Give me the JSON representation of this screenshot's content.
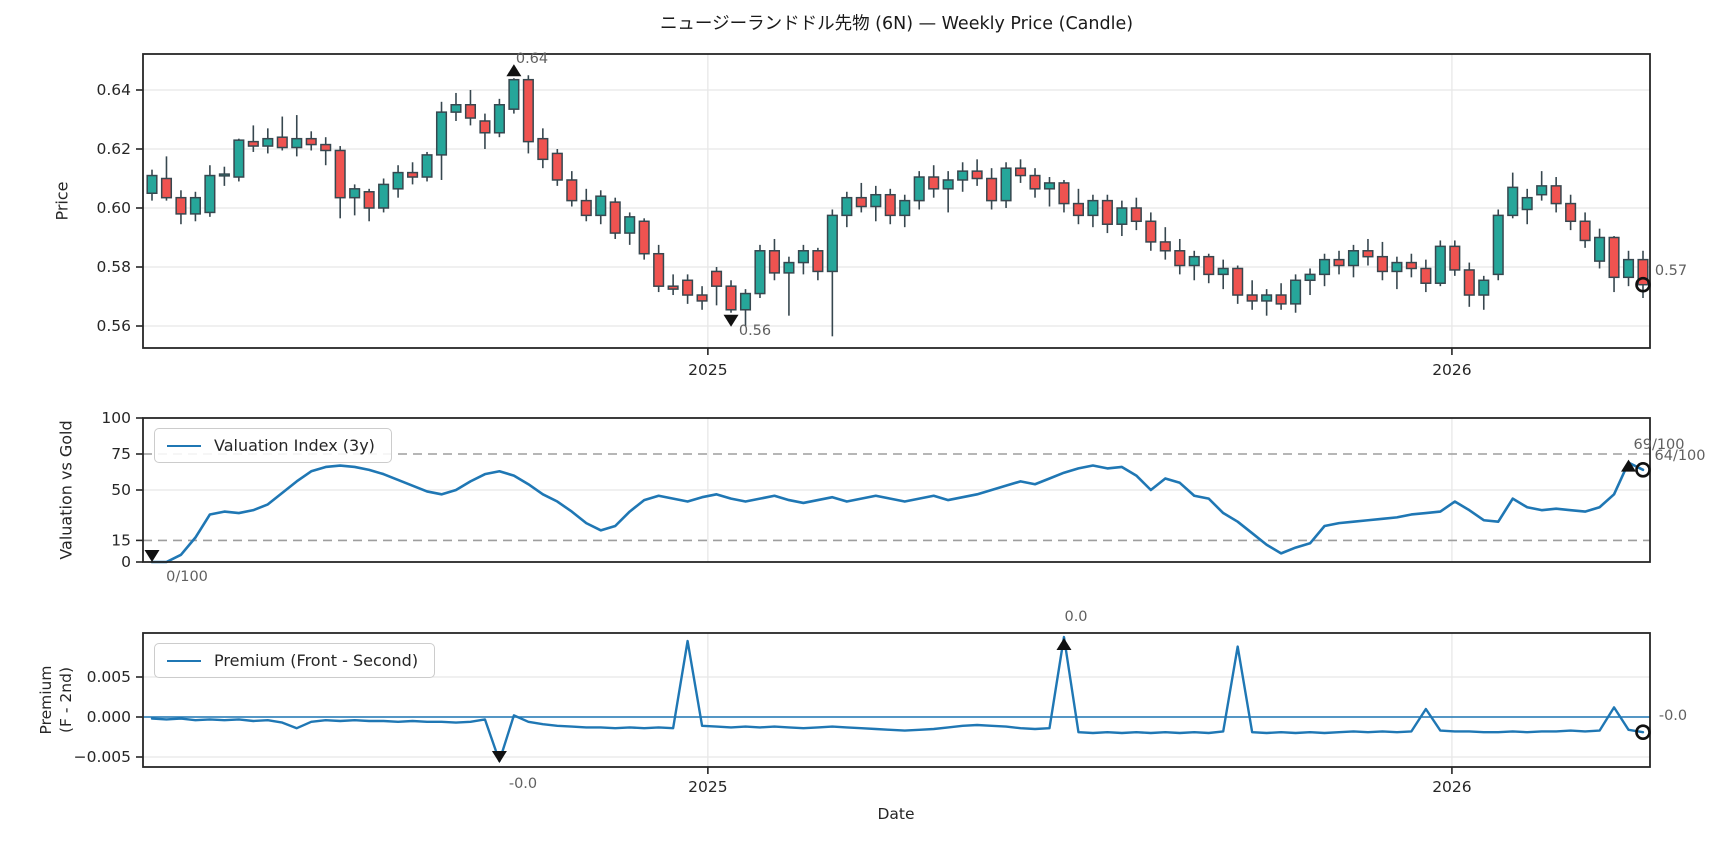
{
  "title": "ニュージーランドドル先物 (6N) — Weekly Price (Candle)",
  "colors": {
    "candle_up": "#26a69a",
    "candle_down": "#ef5350",
    "candle_outline": "#37474f",
    "line_blue": "#1f77b4",
    "grid": "#e7e7e7",
    "dashed": "#9e9e9e",
    "spine": "#262626",
    "marker": "#111111",
    "annotation_text": "#606060"
  },
  "x_axis": {
    "tick_labels": [
      "2025",
      "2026"
    ],
    "tick_indices": [
      38.4,
      89.8
    ],
    "xlabel": "Date"
  },
  "chart_data": [
    {
      "type": "candlestick",
      "title": "ニュージーランドドル先物 (6N) — Weekly Price (Candle)",
      "ylabel": "Price",
      "yticks": [
        0.56,
        0.58,
        0.6,
        0.62,
        0.64
      ],
      "ytick_labels": [
        "0.56",
        "0.58",
        "0.60",
        "0.62",
        "0.64"
      ],
      "ylim": [
        0.5525,
        0.6522
      ],
      "annotations": {
        "high_label": "0.64",
        "high_index": 25,
        "low_label": "0.56",
        "low_index": 40,
        "last_label": "0.57",
        "last_index": 103
      },
      "candles_ohlc": [
        [
          0.605,
          0.613,
          0.6025,
          0.611
        ],
        [
          0.61,
          0.6175,
          0.6025,
          0.6035
        ],
        [
          0.6035,
          0.606,
          0.5945,
          0.598
        ],
        [
          0.598,
          0.6055,
          0.5955,
          0.6035
        ],
        [
          0.5985,
          0.6145,
          0.597,
          0.611
        ],
        [
          0.611,
          0.614,
          0.6075,
          0.6115
        ],
        [
          0.6105,
          0.6235,
          0.609,
          0.623
        ],
        [
          0.6225,
          0.628,
          0.619,
          0.621
        ],
        [
          0.621,
          0.627,
          0.6185,
          0.6235
        ],
        [
          0.624,
          0.631,
          0.6195,
          0.6205
        ],
        [
          0.6205,
          0.6315,
          0.6175,
          0.6235
        ],
        [
          0.6235,
          0.626,
          0.6195,
          0.6215
        ],
        [
          0.6215,
          0.624,
          0.6145,
          0.6195
        ],
        [
          0.6195,
          0.621,
          0.5965,
          0.6035
        ],
        [
          0.6035,
          0.608,
          0.5975,
          0.6065
        ],
        [
          0.6055,
          0.6065,
          0.5955,
          0.6
        ],
        [
          0.6,
          0.61,
          0.5985,
          0.608
        ],
        [
          0.6065,
          0.6145,
          0.6035,
          0.612
        ],
        [
          0.612,
          0.6155,
          0.608,
          0.6105
        ],
        [
          0.6105,
          0.619,
          0.609,
          0.618
        ],
        [
          0.618,
          0.636,
          0.6095,
          0.6325
        ],
        [
          0.6325,
          0.639,
          0.6295,
          0.635
        ],
        [
          0.635,
          0.64,
          0.628,
          0.6305
        ],
        [
          0.6295,
          0.632,
          0.62,
          0.6255
        ],
        [
          0.6255,
          0.637,
          0.624,
          0.635
        ],
        [
          0.6335,
          0.644,
          0.632,
          0.6435
        ],
        [
          0.6435,
          0.645,
          0.6185,
          0.6225
        ],
        [
          0.6235,
          0.627,
          0.6135,
          0.6165
        ],
        [
          0.6185,
          0.62,
          0.6075,
          0.6095
        ],
        [
          0.6095,
          0.6125,
          0.6005,
          0.6025
        ],
        [
          0.6025,
          0.6065,
          0.5955,
          0.5975
        ],
        [
          0.5975,
          0.606,
          0.5945,
          0.604
        ],
        [
          0.602,
          0.6035,
          0.5895,
          0.5915
        ],
        [
          0.5915,
          0.5985,
          0.5875,
          0.597
        ],
        [
          0.5955,
          0.5965,
          0.5825,
          0.5845
        ],
        [
          0.5845,
          0.5875,
          0.5715,
          0.5735
        ],
        [
          0.5735,
          0.5775,
          0.5705,
          0.5725
        ],
        [
          0.5755,
          0.5775,
          0.5675,
          0.5705
        ],
        [
          0.5705,
          0.5735,
          0.5655,
          0.5685
        ],
        [
          0.5785,
          0.58,
          0.567,
          0.5735
        ],
        [
          0.5735,
          0.5755,
          0.5645,
          0.5655
        ],
        [
          0.5655,
          0.5725,
          0.56,
          0.571
        ],
        [
          0.571,
          0.5875,
          0.5695,
          0.5855
        ],
        [
          0.5855,
          0.5895,
          0.5755,
          0.578
        ],
        [
          0.578,
          0.5835,
          0.5635,
          0.5815
        ],
        [
          0.5815,
          0.5875,
          0.5775,
          0.5855
        ],
        [
          0.5855,
          0.5865,
          0.5755,
          0.5785
        ],
        [
          0.5785,
          0.5995,
          0.5565,
          0.5975
        ],
        [
          0.5975,
          0.6055,
          0.5935,
          0.6035
        ],
        [
          0.6035,
          0.6085,
          0.5985,
          0.6005
        ],
        [
          0.6005,
          0.6075,
          0.5955,
          0.6045
        ],
        [
          0.6045,
          0.6065,
          0.5945,
          0.5975
        ],
        [
          0.5975,
          0.6045,
          0.5935,
          0.6025
        ],
        [
          0.6025,
          0.6125,
          0.5995,
          0.6105
        ],
        [
          0.6105,
          0.6145,
          0.6035,
          0.6065
        ],
        [
          0.6065,
          0.6125,
          0.5985,
          0.6095
        ],
        [
          0.6095,
          0.6155,
          0.6055,
          0.6125
        ],
        [
          0.6125,
          0.6165,
          0.6075,
          0.61
        ],
        [
          0.61,
          0.6135,
          0.5995,
          0.6025
        ],
        [
          0.6025,
          0.6155,
          0.6,
          0.6135
        ],
        [
          0.6135,
          0.6165,
          0.6085,
          0.611
        ],
        [
          0.611,
          0.6135,
          0.6035,
          0.6065
        ],
        [
          0.6065,
          0.6105,
          0.6005,
          0.6085
        ],
        [
          0.6085,
          0.6095,
          0.5985,
          0.6015
        ],
        [
          0.6015,
          0.6065,
          0.5945,
          0.5975
        ],
        [
          0.5975,
          0.6045,
          0.5935,
          0.6025
        ],
        [
          0.6025,
          0.6045,
          0.5915,
          0.5945
        ],
        [
          0.5945,
          0.6025,
          0.5905,
          0.6
        ],
        [
          0.6,
          0.6035,
          0.5925,
          0.5955
        ],
        [
          0.5955,
          0.5985,
          0.5855,
          0.5885
        ],
        [
          0.5885,
          0.5935,
          0.5825,
          0.5855
        ],
        [
          0.5855,
          0.5895,
          0.5775,
          0.5805
        ],
        [
          0.5805,
          0.5855,
          0.5755,
          0.5835
        ],
        [
          0.5835,
          0.5845,
          0.5745,
          0.5775
        ],
        [
          0.5775,
          0.5825,
          0.5725,
          0.5795
        ],
        [
          0.5795,
          0.5805,
          0.5675,
          0.5705
        ],
        [
          0.5705,
          0.5755,
          0.5655,
          0.5685
        ],
        [
          0.5685,
          0.5725,
          0.5635,
          0.5705
        ],
        [
          0.5705,
          0.5745,
          0.5655,
          0.5675
        ],
        [
          0.5675,
          0.5775,
          0.5645,
          0.5755
        ],
        [
          0.5755,
          0.5795,
          0.5705,
          0.5775
        ],
        [
          0.5775,
          0.5845,
          0.5735,
          0.5825
        ],
        [
          0.5825,
          0.5855,
          0.5775,
          0.5805
        ],
        [
          0.5805,
          0.5875,
          0.5765,
          0.5855
        ],
        [
          0.5855,
          0.5895,
          0.5805,
          0.5835
        ],
        [
          0.5835,
          0.5885,
          0.5755,
          0.5785
        ],
        [
          0.5785,
          0.5835,
          0.5725,
          0.5815
        ],
        [
          0.5815,
          0.5845,
          0.5765,
          0.5795
        ],
        [
          0.5795,
          0.5825,
          0.5715,
          0.5745
        ],
        [
          0.5745,
          0.589,
          0.5735,
          0.587
        ],
        [
          0.587,
          0.589,
          0.577,
          0.579
        ],
        [
          0.579,
          0.5815,
          0.5665,
          0.5705
        ],
        [
          0.5705,
          0.577,
          0.5655,
          0.5755
        ],
        [
          0.5775,
          0.5995,
          0.5755,
          0.5975
        ],
        [
          0.5975,
          0.612,
          0.5965,
          0.607
        ],
        [
          0.5995,
          0.6065,
          0.5945,
          0.6035
        ],
        [
          0.6045,
          0.6125,
          0.6025,
          0.6075
        ],
        [
          0.6075,
          0.6105,
          0.5985,
          0.6015
        ],
        [
          0.6015,
          0.6045,
          0.5925,
          0.5955
        ],
        [
          0.5955,
          0.5985,
          0.5865,
          0.589
        ],
        [
          0.582,
          0.593,
          0.5795,
          0.59
        ],
        [
          0.59,
          0.5905,
          0.5715,
          0.5765
        ],
        [
          0.5765,
          0.5855,
          0.5735,
          0.5825
        ],
        [
          0.5825,
          0.5855,
          0.5695,
          0.574
        ]
      ]
    },
    {
      "type": "line",
      "series_name": "Valuation Index (3y)",
      "ylabel": "Valuation vs Gold",
      "yticks": [
        0,
        15,
        50,
        75,
        100
      ],
      "ytick_labels": [
        "0",
        "15",
        "50",
        "75",
        "100"
      ],
      "dashed_levels": [
        15,
        75
      ],
      "solid_grid_levels": [
        50
      ],
      "ylim": [
        0,
        100
      ],
      "legend_position": "upper-left",
      "annotations": {
        "start_label": "0/100",
        "start_index": 0,
        "peak_label": "69/100",
        "peak_index": 102,
        "last_label": "64/100",
        "last_index": 103
      },
      "values": [
        0,
        0,
        5,
        17,
        33,
        35,
        34,
        36,
        40,
        48,
        56,
        63,
        66,
        67,
        66,
        64,
        61,
        57,
        53,
        49,
        47,
        50,
        56,
        61,
        63,
        60,
        54,
        47,
        42,
        35,
        27,
        22,
        25,
        35,
        43,
        46,
        44,
        42,
        45,
        47,
        44,
        42,
        44,
        46,
        43,
        41,
        43,
        45,
        42,
        44,
        46,
        44,
        42,
        44,
        46,
        43,
        45,
        47,
        50,
        53,
        56,
        54,
        58,
        62,
        65,
        67,
        65,
        66,
        60,
        50,
        58,
        55,
        46,
        44,
        34,
        28,
        20,
        12,
        6,
        10,
        13,
        25,
        27,
        28,
        29,
        30,
        31,
        33,
        34,
        35,
        42,
        36,
        29,
        28,
        44,
        38,
        36,
        37,
        36,
        35,
        38,
        47,
        69,
        64
      ]
    },
    {
      "type": "line",
      "series_name": "Premium (Front - Second)",
      "ylabel_line1": "Premium",
      "ylabel_line2": "(F - 2nd)",
      "xlabel": "Date",
      "yticks": [
        -0.005,
        0.0,
        0.005
      ],
      "ytick_labels": [
        "−0.005",
        "0.000",
        "0.005"
      ],
      "zero_line": true,
      "ylim": [
        -0.00625,
        0.0105
      ],
      "legend_position": "upper-left",
      "annotations": {
        "min_label": "-0.0",
        "min_index": 24,
        "max_label": "0.0",
        "max_index": 63,
        "last_label": "-0.0",
        "last_index": 103
      },
      "values": [
        -0.0002,
        -0.0003,
        -0.0002,
        -0.0004,
        -0.0003,
        -0.0004,
        -0.0003,
        -0.0005,
        -0.0004,
        -0.0007,
        -0.0014,
        -0.0006,
        -0.0004,
        -0.0005,
        -0.0004,
        -0.0005,
        -0.0005,
        -0.0006,
        -0.0005,
        -0.0006,
        -0.0006,
        -0.0007,
        -0.0006,
        -0.0003,
        -0.0055,
        0.0002,
        -0.0006,
        -0.0009,
        -0.0011,
        -0.0012,
        -0.0013,
        -0.0013,
        -0.0014,
        -0.0013,
        -0.0014,
        -0.0013,
        -0.0014,
        0.0095,
        -0.0011,
        -0.0012,
        -0.0013,
        -0.0012,
        -0.0013,
        -0.0012,
        -0.0013,
        -0.0014,
        -0.0013,
        -0.0012,
        -0.0013,
        -0.0014,
        -0.0015,
        -0.0016,
        -0.0017,
        -0.0016,
        -0.0015,
        -0.0013,
        -0.0011,
        -0.001,
        -0.0011,
        -0.0012,
        -0.0014,
        -0.0015,
        -0.0014,
        0.01,
        -0.0019,
        -0.002,
        -0.0019,
        -0.002,
        -0.0019,
        -0.002,
        -0.0019,
        -0.002,
        -0.0019,
        -0.002,
        -0.0018,
        0.0088,
        -0.0019,
        -0.002,
        -0.0019,
        -0.002,
        -0.0019,
        -0.002,
        -0.0019,
        -0.0018,
        -0.0019,
        -0.0018,
        -0.0019,
        -0.0018,
        0.001,
        -0.0017,
        -0.0018,
        -0.0018,
        -0.0019,
        -0.0019,
        -0.0018,
        -0.0019,
        -0.0018,
        -0.0018,
        -0.0017,
        -0.0018,
        -0.0017,
        0.0012,
        -0.0016,
        -0.0019
      ]
    }
  ]
}
